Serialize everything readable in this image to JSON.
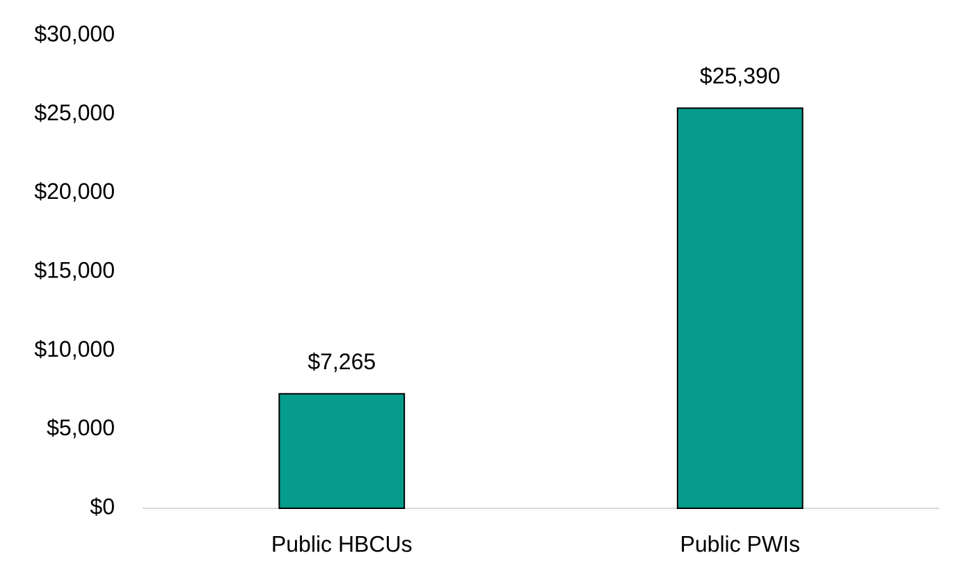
{
  "chart_data": {
    "type": "bar",
    "categories": [
      "Public HBCUs",
      "Public PWIs"
    ],
    "values": [
      7265,
      25390
    ],
    "value_labels": [
      "$7,265",
      "$25,390"
    ],
    "color": "#069c8c",
    "edgecolor": "#000000",
    "ylim": [
      0,
      30000
    ],
    "yticks": [
      {
        "value": 0,
        "label": "$0"
      },
      {
        "value": 5000,
        "label": "$5,000"
      },
      {
        "value": 10000,
        "label": "$10,000"
      },
      {
        "value": 15000,
        "label": "$15,000"
      },
      {
        "value": 20000,
        "label": "$20,000"
      },
      {
        "value": 25000,
        "label": "$25,000"
      },
      {
        "value": 30000,
        "label": "$30,000"
      }
    ],
    "grid": false
  }
}
